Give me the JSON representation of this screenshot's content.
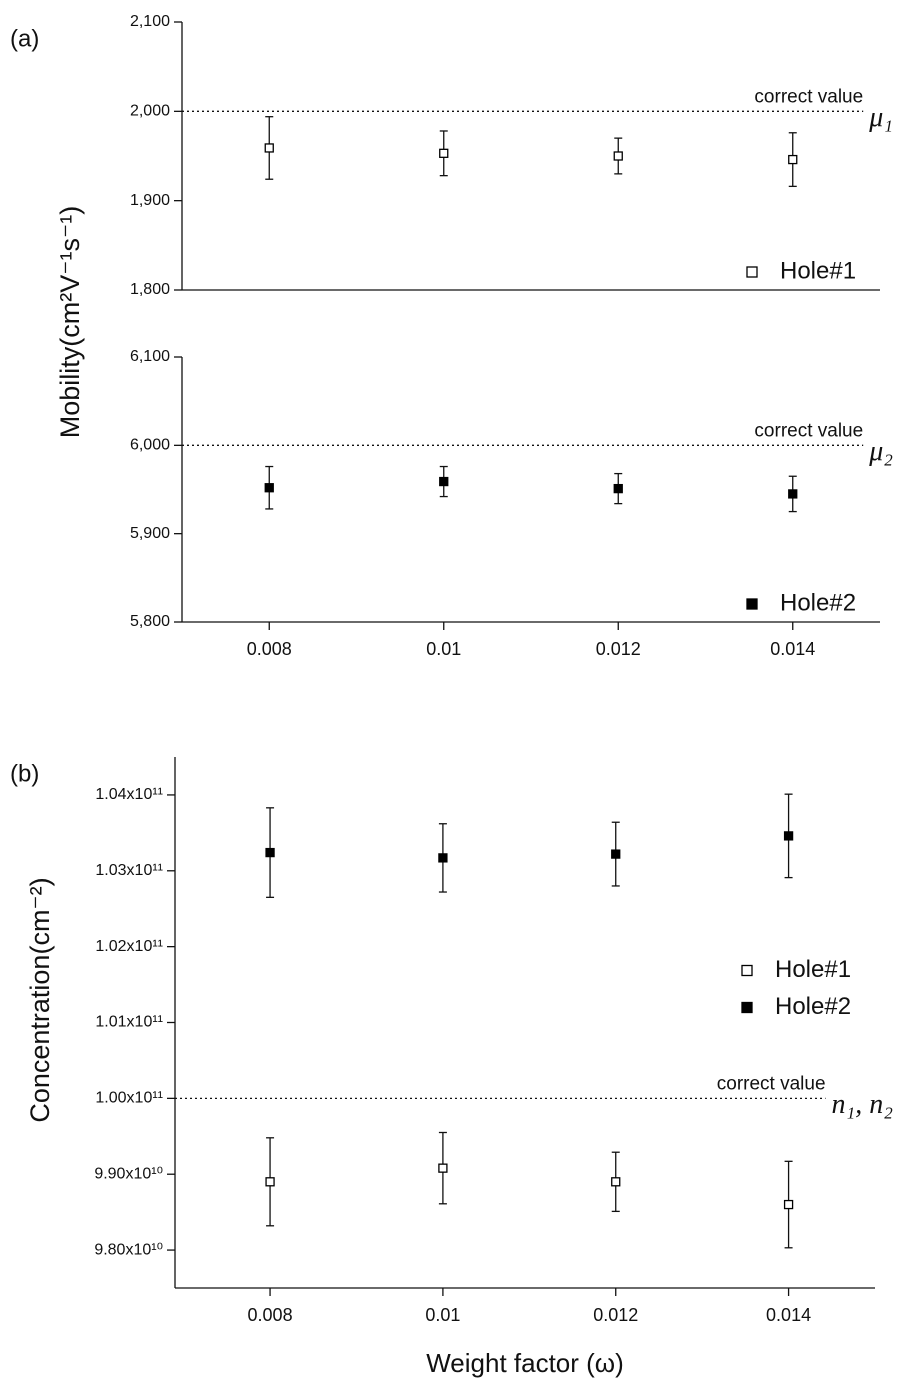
{
  "chart_data": [
    {
      "type": "scatter",
      "panel_label": "(a)",
      "ylabel": "Mobility(cm²V⁻¹s⁻¹)",
      "x": [
        0.008,
        0.01,
        0.012,
        0.014
      ],
      "xlim": [
        0.007,
        0.015
      ],
      "ylim": [
        1800,
        2100
      ],
      "yticks": [
        {
          "value": 1800,
          "label": "1,800"
        },
        {
          "value": 1900,
          "label": "1,900"
        },
        {
          "value": 2000,
          "label": "2,000"
        },
        {
          "value": 2100,
          "label": "2,100"
        }
      ],
      "series": [
        {
          "name": "Hole#1",
          "color": "#000000",
          "marker": "open",
          "values": [
            1959,
            1953,
            1950,
            1946
          ],
          "errors": [
            35,
            25,
            20,
            30
          ]
        }
      ],
      "reference": {
        "value": 2000,
        "label": "correct value",
        "symbol": "μ₁"
      },
      "legend": "lower right"
    },
    {
      "type": "scatter",
      "x": [
        0.008,
        0.01,
        0.012,
        0.014
      ],
      "xlim": [
        0.007,
        0.015
      ],
      "xticks": [
        0.008,
        0.01,
        0.012,
        0.014
      ],
      "ylim": [
        5800,
        6100
      ],
      "yticks": [
        {
          "value": 5800,
          "label": "5,800"
        },
        {
          "value": 5900,
          "label": "5,900"
        },
        {
          "value": 6000,
          "label": "6,000"
        },
        {
          "value": 6100,
          "label": "6,100"
        }
      ],
      "series": [
        {
          "name": "Hole#2",
          "color": "#000000",
          "marker": "filled",
          "values": [
            5952,
            5959,
            5951,
            5945
          ],
          "errors": [
            24,
            17,
            17,
            20
          ]
        }
      ],
      "reference": {
        "value": 6000,
        "label": "correct value",
        "symbol": "μ₂"
      },
      "legend": "lower right"
    },
    {
      "type": "scatter",
      "panel_label": "(b)",
      "ylabel": "Concentration(cm⁻²)",
      "xlabel": "Weight factor (ω)",
      "x": [
        0.008,
        0.01,
        0.012,
        0.014
      ],
      "xlim": [
        0.0069,
        0.015
      ],
      "xticks": [
        0.008,
        0.01,
        0.012,
        0.014
      ],
      "ylim": [
        97500000000,
        104500000000
      ],
      "yticks": [
        {
          "value": 98000000000,
          "label": "9.80x10¹⁰"
        },
        {
          "value": 99000000000,
          "label": "9.90x10¹⁰"
        },
        {
          "value": 100000000000,
          "label": "1.00x10¹¹"
        },
        {
          "value": 101000000000,
          "label": "1.01x10¹¹"
        },
        {
          "value": 102000000000,
          "label": "1.02x10¹¹"
        },
        {
          "value": 103000000000,
          "label": "1.03x10¹¹"
        },
        {
          "value": 104000000000,
          "label": "1.04x10¹¹"
        }
      ],
      "series": [
        {
          "name": "Hole#1",
          "color": "#000000",
          "marker": "open",
          "values": [
            98900000000,
            99080000000,
            98900000000,
            98600000000
          ],
          "errors": [
            580000000,
            470000000,
            390000000,
            570000000
          ]
        },
        {
          "name": "Hole#2",
          "color": "#000000",
          "marker": "filled",
          "values": [
            103240000000,
            103170000000,
            103220000000,
            103460000000
          ],
          "errors": [
            590000000,
            450000000,
            420000000,
            550000000
          ]
        }
      ],
      "reference": {
        "value": 100000000000,
        "label": "correct value",
        "symbol": "n₁, n₂"
      },
      "legend": "center right"
    }
  ]
}
